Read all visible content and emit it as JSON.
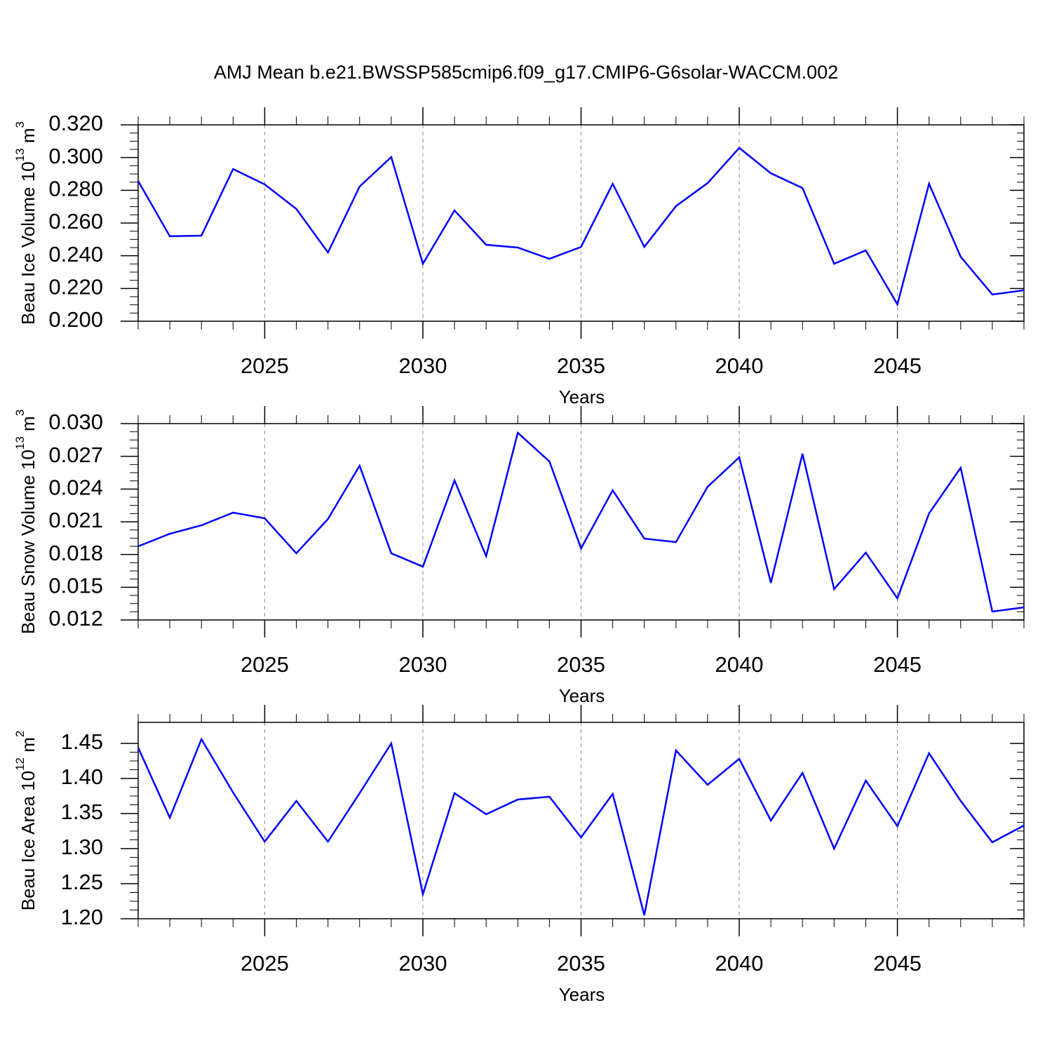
{
  "chart_data": [
    {
      "type": "line",
      "title": "AMJ Mean b.e21.BWSSP585cmip6.f09_g17.CMIP6-G6solar-WACCM.002",
      "ylabel": [
        "Beau Ice Volume 10",
        "13",
        " m",
        "3"
      ],
      "xlabel": "Years",
      "x": [
        2021,
        2022,
        2023,
        2024,
        2025,
        2026,
        2027,
        2028,
        2029,
        2030,
        2031,
        2032,
        2033,
        2034,
        2035,
        2036,
        2037,
        2038,
        2039,
        2040,
        2041,
        2042,
        2043,
        2044,
        2045,
        2046,
        2047,
        2048,
        2049
      ],
      "series": [
        {
          "color": "#0000ff",
          "values": [
            0.2857,
            0.2519,
            0.2523,
            0.293,
            0.2836,
            0.2686,
            0.242,
            0.2823,
            0.3003,
            0.2351,
            0.2677,
            0.2467,
            0.245,
            0.2381,
            0.2454,
            0.284,
            0.2454,
            0.2703,
            0.2844,
            0.3059,
            0.2904,
            0.2814,
            0.2351,
            0.2433,
            0.2103,
            0.284,
            0.2394,
            0.2163,
            0.2189
          ]
        }
      ],
      "xlim": [
        2021,
        2049
      ],
      "xticks": [
        2025,
        2030,
        2035,
        2040,
        2045
      ],
      "ylim": [
        0.2,
        0.32
      ],
      "yticks": [
        {
          "value": 0.2,
          "label": "0.200"
        },
        {
          "value": 0.22,
          "label": "0.220"
        },
        {
          "value": 0.24,
          "label": "0.240"
        },
        {
          "value": 0.26,
          "label": "0.260"
        },
        {
          "value": 0.28,
          "label": "0.280"
        },
        {
          "value": 0.3,
          "label": "0.300"
        },
        {
          "value": 0.32,
          "label": "0.320"
        }
      ],
      "grid": "x-dashed"
    },
    {
      "type": "line",
      "ylabel": [
        "Beau Snow Volume 10",
        "13",
        " m",
        "3"
      ],
      "xlabel": "Years",
      "x": [
        2021,
        2022,
        2023,
        2024,
        2025,
        2026,
        2027,
        2028,
        2029,
        2030,
        2031,
        2032,
        2033,
        2034,
        2035,
        2036,
        2037,
        2038,
        2039,
        2040,
        2041,
        2042,
        2043,
        2044,
        2045,
        2046,
        2047,
        2048,
        2049
      ],
      "series": [
        {
          "color": "#0000ff",
          "values": [
            0.01875,
            0.0199,
            0.02068,
            0.02184,
            0.02132,
            0.01811,
            0.02126,
            0.02614,
            0.01811,
            0.01689,
            0.02479,
            0.01785,
            0.02916,
            0.02653,
            0.01856,
            0.02389,
            0.01946,
            0.01914,
            0.02421,
            0.02691,
            0.01541,
            0.02724,
            0.01483,
            0.01817,
            0.01399,
            0.02177,
            0.02595,
            0.01277,
            0.01316
          ]
        }
      ],
      "xlim": [
        2021,
        2049
      ],
      "xticks": [
        2025,
        2030,
        2035,
        2040,
        2045
      ],
      "ylim": [
        0.012,
        0.03
      ],
      "yticks": [
        {
          "value": 0.012,
          "label": "0.012"
        },
        {
          "value": 0.015,
          "label": "0.015"
        },
        {
          "value": 0.018,
          "label": "0.018"
        },
        {
          "value": 0.021,
          "label": "0.021"
        },
        {
          "value": 0.024,
          "label": "0.024"
        },
        {
          "value": 0.027,
          "label": "0.027"
        },
        {
          "value": 0.03,
          "label": "0.030"
        }
      ],
      "grid": "x-dashed"
    },
    {
      "type": "line",
      "ylabel": [
        "Beau Ice Area 10",
        "12",
        " m",
        "2"
      ],
      "xlabel": "Years",
      "x": [
        2021,
        2022,
        2023,
        2024,
        2025,
        2026,
        2027,
        2028,
        2029,
        2030,
        2031,
        2032,
        2033,
        2034,
        2035,
        2036,
        2037,
        2038,
        2039,
        2040,
        2041,
        2042,
        2043,
        2044,
        2045,
        2046,
        2047,
        2048,
        2049
      ],
      "series": [
        {
          "color": "#0000ff",
          "values": [
            1.444,
            1.344,
            1.456,
            1.38,
            1.31,
            1.368,
            1.31,
            1.379,
            1.45,
            1.235,
            1.379,
            1.349,
            1.37,
            1.374,
            1.316,
            1.378,
            1.205,
            1.44,
            1.391,
            1.428,
            1.34,
            1.408,
            1.3,
            1.397,
            1.332,
            1.436,
            1.368,
            1.309,
            1.333
          ]
        }
      ],
      "xlim": [
        2021,
        2049
      ],
      "xticks": [
        2025,
        2030,
        2035,
        2040,
        2045
      ],
      "ylim": [
        1.2,
        1.48
      ],
      "yticks": [
        {
          "value": 1.2,
          "label": "1.20"
        },
        {
          "value": 1.25,
          "label": "1.25"
        },
        {
          "value": 1.3,
          "label": "1.30"
        },
        {
          "value": 1.35,
          "label": "1.35"
        },
        {
          "value": 1.4,
          "label": "1.40"
        },
        {
          "value": 1.45,
          "label": "1.45"
        }
      ],
      "grid": "x-dashed"
    }
  ]
}
